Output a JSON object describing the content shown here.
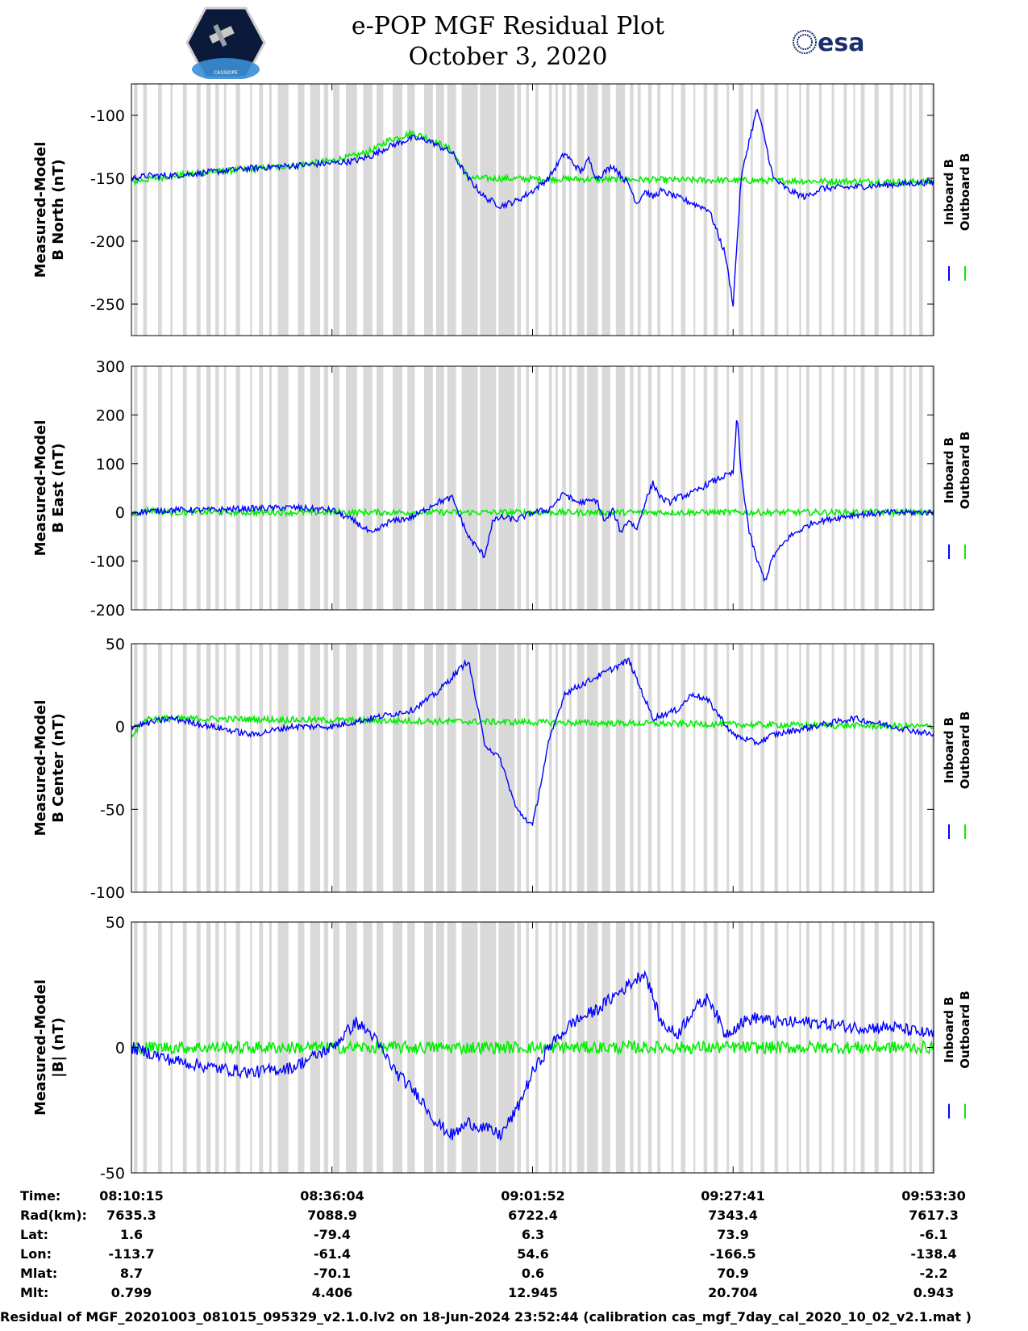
{
  "title": {
    "line1": "e-POP MGF Residual Plot",
    "line2": "October 3, 2020"
  },
  "logos": {
    "left": "CASSIOPE",
    "right": "esa"
  },
  "colors": {
    "inboard": "#0000ff",
    "outboard": "#00ee00",
    "shade": "#d9d9d9"
  },
  "legend": {
    "inboard": "Inboard B",
    "outboard": "Outboard B"
  },
  "chart_data": [
    {
      "type": "line",
      "ylabel": [
        "Measured-Model",
        "B North (nT)"
      ],
      "ylim": [
        -275,
        -75
      ],
      "yticks": [
        -100,
        -150,
        -200,
        -250
      ],
      "series": [
        {
          "name": "Inboard B",
          "x": [
            0,
            0.02,
            0.05,
            0.1,
            0.15,
            0.2,
            0.25,
            0.28,
            0.3,
            0.32,
            0.35,
            0.37,
            0.4,
            0.42,
            0.44,
            0.46,
            0.48,
            0.5,
            0.52,
            0.54,
            0.56,
            0.57,
            0.58,
            0.6,
            0.62,
            0.63,
            0.64,
            0.65,
            0.66,
            0.68,
            0.7,
            0.72,
            0.74,
            0.75,
            0.76,
            0.77,
            0.78,
            0.79,
            0.8,
            0.82,
            0.84,
            0.86,
            0.9,
            0.95,
            1.0
          ],
          "y": [
            -150,
            -148,
            -148,
            -145,
            -142,
            -140,
            -138,
            -136,
            -132,
            -125,
            -118,
            -120,
            -130,
            -150,
            -165,
            -172,
            -168,
            -160,
            -150,
            -130,
            -145,
            -135,
            -150,
            -140,
            -155,
            -170,
            -160,
            -165,
            -160,
            -165,
            -170,
            -175,
            -210,
            -250,
            -150,
            -120,
            -95,
            -120,
            -150,
            -160,
            -165,
            -158,
            -157,
            -155,
            -153
          ]
        },
        {
          "name": "Outboard B",
          "x": [
            0,
            0.02,
            0.05,
            0.1,
            0.2,
            0.25,
            0.28,
            0.3,
            0.32,
            0.35,
            0.37,
            0.4,
            0.42,
            1.0
          ],
          "y": [
            -153,
            -151,
            -148,
            -145,
            -140,
            -136,
            -132,
            -128,
            -120,
            -114,
            -118,
            -128,
            -150,
            -153
          ]
        }
      ]
    },
    {
      "type": "line",
      "ylabel": [
        "Measured-Model",
        "B East (nT)"
      ],
      "ylim": [
        -200,
        300
      ],
      "yticks": [
        300,
        200,
        100,
        0,
        -100,
        -200
      ],
      "series": [
        {
          "name": "Inboard B",
          "x": [
            0,
            0.05,
            0.1,
            0.15,
            0.2,
            0.25,
            0.28,
            0.3,
            0.32,
            0.35,
            0.38,
            0.4,
            0.42,
            0.44,
            0.45,
            0.46,
            0.48,
            0.5,
            0.52,
            0.54,
            0.55,
            0.56,
            0.58,
            0.59,
            0.6,
            0.61,
            0.62,
            0.63,
            0.64,
            0.65,
            0.66,
            0.67,
            0.68,
            0.7,
            0.72,
            0.74,
            0.75,
            0.755,
            0.76,
            0.77,
            0.78,
            0.79,
            0.8,
            0.82,
            0.85,
            0.9,
            0.95,
            1.0
          ],
          "y": [
            0,
            5,
            5,
            8,
            10,
            5,
            -20,
            -45,
            -20,
            -10,
            20,
            30,
            -50,
            -90,
            -20,
            -10,
            -15,
            0,
            5,
            40,
            25,
            20,
            25,
            -20,
            5,
            -40,
            -15,
            -35,
            20,
            60,
            30,
            20,
            30,
            40,
            60,
            75,
            80,
            200,
            80,
            -40,
            -100,
            -140,
            -90,
            -50,
            -20,
            -5,
            0,
            0
          ]
        },
        {
          "name": "Outboard B",
          "x": [
            0,
            0.02,
            0.05,
            1.0
          ],
          "y": [
            -5,
            5,
            0,
            0
          ]
        }
      ]
    },
    {
      "type": "line",
      "ylabel": [
        "Measured-Model",
        "B Center (nT)"
      ],
      "ylim": [
        -100,
        50
      ],
      "yticks": [
        50,
        0,
        -50,
        -100
      ],
      "series": [
        {
          "name": "Inboard B",
          "x": [
            0,
            0.05,
            0.1,
            0.15,
            0.2,
            0.25,
            0.3,
            0.35,
            0.38,
            0.4,
            0.42,
            0.44,
            0.46,
            0.48,
            0.5,
            0.52,
            0.54,
            0.56,
            0.58,
            0.6,
            0.62,
            0.65,
            0.68,
            0.7,
            0.72,
            0.75,
            0.78,
            0.8,
            0.85,
            0.9,
            0.95,
            1.0
          ],
          "y": [
            0,
            5,
            0,
            -5,
            0,
            0,
            5,
            10,
            20,
            30,
            40,
            -10,
            -20,
            -50,
            -60,
            -10,
            20,
            25,
            30,
            35,
            40,
            5,
            10,
            20,
            15,
            -5,
            -10,
            -5,
            0,
            5,
            0,
            -5
          ]
        },
        {
          "name": "Outboard B",
          "x": [
            0,
            0.02,
            1.0
          ],
          "y": [
            -5,
            5,
            0
          ]
        }
      ]
    },
    {
      "type": "line",
      "ylabel": [
        "Measured-Model",
        "|B| (nT)"
      ],
      "ylim": [
        -50,
        50
      ],
      "yticks": [
        50,
        0,
        -50
      ],
      "series": [
        {
          "name": "Inboard B",
          "x": [
            0,
            0.05,
            0.1,
            0.15,
            0.2,
            0.25,
            0.28,
            0.3,
            0.33,
            0.36,
            0.38,
            0.4,
            0.42,
            0.44,
            0.46,
            0.48,
            0.5,
            0.52,
            0.55,
            0.58,
            0.6,
            0.62,
            0.64,
            0.66,
            0.68,
            0.7,
            0.72,
            0.74,
            0.76,
            0.78,
            0.8,
            0.85,
            0.9,
            0.95,
            1.0
          ],
          "y": [
            0,
            -5,
            -8,
            -10,
            -8,
            0,
            10,
            5,
            -10,
            -20,
            -30,
            -35,
            -30,
            -32,
            -35,
            -25,
            -10,
            0,
            10,
            15,
            20,
            25,
            30,
            10,
            5,
            15,
            20,
            5,
            10,
            12,
            10,
            10,
            8,
            8,
            5
          ]
        },
        {
          "name": "Outboard B",
          "x": [
            0,
            0.02,
            1.0
          ],
          "y": [
            0,
            0,
            0
          ]
        }
      ]
    }
  ],
  "x_ticks": [
    "08:10:15",
    "08:36:04",
    "09:01:52",
    "09:27:41",
    "09:53:30"
  ],
  "info_table": [
    {
      "label": "Time:",
      "values": [
        "08:10:15",
        "08:36:04",
        "09:01:52",
        "09:27:41",
        "09:53:30"
      ]
    },
    {
      "label": "Rad(km):",
      "values": [
        "7635.3",
        "7088.9",
        "6722.4",
        "7343.4",
        "7617.3"
      ]
    },
    {
      "label": "Lat:",
      "values": [
        "1.6",
        "-79.4",
        "6.3",
        "73.9",
        "-6.1"
      ]
    },
    {
      "label": "Lon:",
      "values": [
        "-113.7",
        "-61.4",
        "54.6",
        "-166.5",
        "-138.4"
      ]
    },
    {
      "label": "Mlat:",
      "values": [
        "8.7",
        "-70.1",
        "0.6",
        "70.9",
        "-2.2"
      ]
    },
    {
      "label": "Mlt:",
      "values": [
        "0.799",
        "4.406",
        "12.945",
        "20.704",
        "0.943"
      ]
    }
  ],
  "footer": "Residual of MGF_20201003_081015_095329_v2.1.0.lv2 on 18-Jun-2024 23:52:44 (calibration cas_mgf_7day_cal_2020_10_02_v2.1.mat )"
}
